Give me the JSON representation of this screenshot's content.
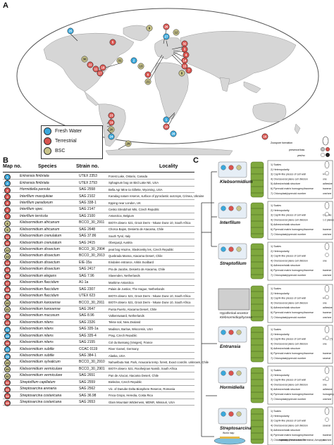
{
  "panels": {
    "a": "A",
    "b": "B",
    "c": "C"
  },
  "colors": {
    "fresh": "#3aa8dc",
    "terrestrial": "#d9544f",
    "bsc": "#c9c48a",
    "land": "#dcdcdc",
    "ocean": "#ffffff"
  },
  "legend": [
    {
      "label": "Fresh Water",
      "color": "#3aa8dc"
    },
    {
      "label": "Terrestrial",
      "color": "#d9544f"
    },
    {
      "label": "BSC",
      "color": "#c9c48a"
    }
  ],
  "map_markers": [
    "25",
    "26",
    "27",
    "32",
    "3",
    "4",
    "14",
    "15",
    "7",
    "22",
    "11",
    "18",
    "17",
    "30",
    "31",
    "6",
    "21",
    "23",
    "19",
    "20",
    "24",
    "1",
    "10",
    "28",
    "29",
    "16",
    "8",
    "9",
    "5",
    "12",
    "13",
    "2"
  ],
  "table": {
    "headers": [
      "Map no.",
      "Species",
      "Strain no.",
      "Locality"
    ],
    "rows": [
      [
        "1",
        "Entransia fimbriata",
        "UTEX 2353",
        "Forest Lake, Ontario, Canada",
        "fresh"
      ],
      [
        "2",
        "Entransia fimbriata",
        "UTEX 2793",
        "Sphagnum bog on Bird Lake NE, USA",
        "fresh"
      ],
      [
        "3",
        "Hormidiella parvula",
        "SAG 2558",
        "Bella Agr Mine ta Gillette, Wyoming, USA",
        "terrestrial"
      ],
      [
        "4",
        "Interfilum massjukiae",
        "SAG 2102",
        "Karadag nature reserve, surface of pyroclastic outcrops, Crimea, Ukraine",
        "terrestrial"
      ],
      [
        "5",
        "Interfilum paradoxum",
        "SAG 338-1",
        "Epping near London, UK",
        "terrestrial"
      ],
      [
        "6",
        "Interfilum spec.",
        "SAG 2147",
        "Cesko Stredohori Mts, Czech Republic",
        "terrestrial"
      ],
      [
        "7",
        "Interfilum terricola",
        "SAG 2100",
        "Antarctica, Belgium",
        "terrestrial"
      ],
      [
        "8",
        "Klebsormidium africanum",
        "BCCO_30_2911",
        "BIOTA observ. 521, Groot Derm - Nkuse Dune 10, South Africa",
        "bsc"
      ],
      [
        "9",
        "Klebsormidium africanum",
        "SAG 2648",
        "Chorca Bajos, Desierto de Atacama, Chile",
        "bsc"
      ],
      [
        "10",
        "Klebsormidium crenulatum",
        "SAG 37.86",
        "South Tyrol, Italy",
        "terrestrial"
      ],
      [
        "11",
        "Klebsormidium crenulatum",
        "SAG 2415",
        "Obergurgl, Austria",
        "terrestrial"
      ],
      [
        "12",
        "Klebsormidium dissectum",
        "BCCO_30_2904",
        "peat bog Hrazne, Slavkovsky les, Czech Republic",
        "bsc"
      ],
      [
        "13",
        "Klebsormidium dissectum",
        "BCCO_30_2913",
        "Quebrada Manna, Atacama Desert, Chile",
        "bsc"
      ],
      [
        "14",
        "Klebsormidium dissectum",
        "EIE-15a",
        "Eindalen entrance, Arktis Svalbard",
        "terrestrial"
      ],
      [
        "15",
        "Klebsormidium dissectum",
        "SAG 2417",
        "Pra de Jacobe, Desierto de Atacama, Chile",
        "terrestrial"
      ],
      [
        "16",
        "Klebsormidium elegans",
        "SAG 7.96",
        "Slavenden, Netherlands",
        "terrestrial"
      ],
      [
        "17",
        "Klebsormidium flaccidum",
        "A1-1a",
        "Maritime Antarctica",
        "terrestrial"
      ],
      [
        "18",
        "Klebsormidium flaccidum",
        "SAG 2307",
        "Palais de Justice, The Hague, Netherlands",
        "terrestrial"
      ],
      [
        "19",
        "Klebsormidium flaccidum",
        "UTEX 623",
        "BIOTA observ. 521, Groot Derm - Nkuse Dune 10, South Africa",
        "terrestrial"
      ],
      [
        "20",
        "Klebsormidium karooense",
        "BCCO_30_2911",
        "BIOTA observ. 521, Groot Derm - Nkuse Dune 10, South Africa",
        "bsc"
      ],
      [
        "21",
        "Klebsormidium karooense",
        "SAG 2647",
        "Punta Puerto, Atacama Desert, Chile",
        "bsc"
      ],
      [
        "22",
        "Klebsormidium mucosum",
        "SAG 8.96",
        "Valkenswaard, Netherlands",
        "terrestrial"
      ],
      [
        "23",
        "Klebsormidium nitens",
        "SAG 2326",
        "Tekse soil, New Zealand",
        "terrestrial"
      ],
      [
        "24",
        "Klebsormidium nitens",
        "SAG 335-1a",
        "Madison, Barlow, Wisconsin, USA",
        "fresh"
      ],
      [
        "25",
        "Klebsormidium nitens",
        "SAG 335-4",
        "Prag, Czech Republic",
        "fresh"
      ],
      [
        "26",
        "Klebsormidium nitens",
        "SAG 2155",
        "Col du Bussang (Vosges), France",
        "terrestrial"
      ],
      [
        "27",
        "Klebsormidium subtile",
        "CCAC 0119",
        "River Gamel, Germany",
        "fresh"
      ],
      [
        "28",
        "Klebsormidium subtile",
        "SAG 384-1",
        "Alaska, USA",
        "fresh"
      ],
      [
        "29",
        "Klebsormidium sylvaticum",
        "BCCO_30_2910",
        "Nahuelbuta Nat. Park, Araucaria temp. forest, Exact coordin. unknown, Chile",
        "bsc"
      ],
      [
        "30",
        "Klebsormidium vermiculare",
        "BCCO_30_2901",
        "BIOTA observ. 521, Rooiheijnan Namib, South Africa",
        "bsc"
      ],
      [
        "31",
        "Klebsormidium vermiculare",
        "SAG 2651",
        "Pan de Azucar, Atacama Desert, Chile",
        "bsc"
      ],
      [
        "32",
        "Streptofilum capillatum",
        "SAG 2559",
        "Bieledov, Czech Republic",
        "terrestrial"
      ],
      [
        "33",
        "Streptosarcina arenaria",
        "SAG 2562",
        "Vic. of Danube Delta Biosphere Reserve, Romania",
        "terrestrial"
      ],
      [
        "34",
        "Streptosarcina costaricana",
        "SAG 36.98",
        "Finca Gropo, Heredia, Costa Rica",
        "terrestrial"
      ],
      [
        "35",
        "Streptosarcina costaricana",
        "SAG 2653",
        "Glam Mountain Wilderness, MDNR, Missouri, USA",
        "terrestrial"
      ]
    ]
  },
  "tree": {
    "taxa": [
      "Klebsormidium",
      "Interfilum",
      "Streptofilum",
      "Entransia",
      "Hormidiella",
      "Streptosarcina"
    ],
    "ancestor": "Hypothetical ancestor Klebsormidiophyceae",
    "traits": [
      "1) Scales",
      "2) Heteropolarity",
      "3) Cap/H-like pieces of cell wall",
      "4) One/several plane cell division",
      "5) Adhesive/stalk structure",
      "6) Pyrenoid matrix homogeny/traverse",
      "7) Chloroplast/pyrenoid number"
    ],
    "states": {
      "Klebsormidium": [
        "",
        "",
        "H-like",
        "one",
        "adhesive",
        "traverse",
        "one/one"
      ],
      "Interfilum": [
        "",
        "",
        "Cap-like",
        "1-2 planes",
        "",
        "traverse",
        "one/one"
      ],
      "Streptofilum": [
        "",
        "",
        "",
        "one",
        "",
        "traverse",
        "one/one"
      ],
      "Ancestor": [
        "",
        "",
        "H-like",
        "one",
        "adhesive",
        "traverse",
        "one/one"
      ],
      "Entransia": [
        "",
        "",
        "H-like (?)",
        "one",
        "",
        "traverse",
        "several"
      ],
      "Hormidiella": [
        "",
        "",
        "H-like",
        "one",
        "adhesive",
        "homogeny",
        "one/one"
      ],
      "Streptosarcina": [
        "",
        "",
        "",
        "several",
        "",
        "traverse",
        "one/one"
      ]
    },
    "key_labels": [
      "Zoospore formation",
      "presence/loss",
      "yes/no",
      "World map",
      "Habitats: Fresh water, Terrestrial, Aeroplytic"
    ]
  }
}
